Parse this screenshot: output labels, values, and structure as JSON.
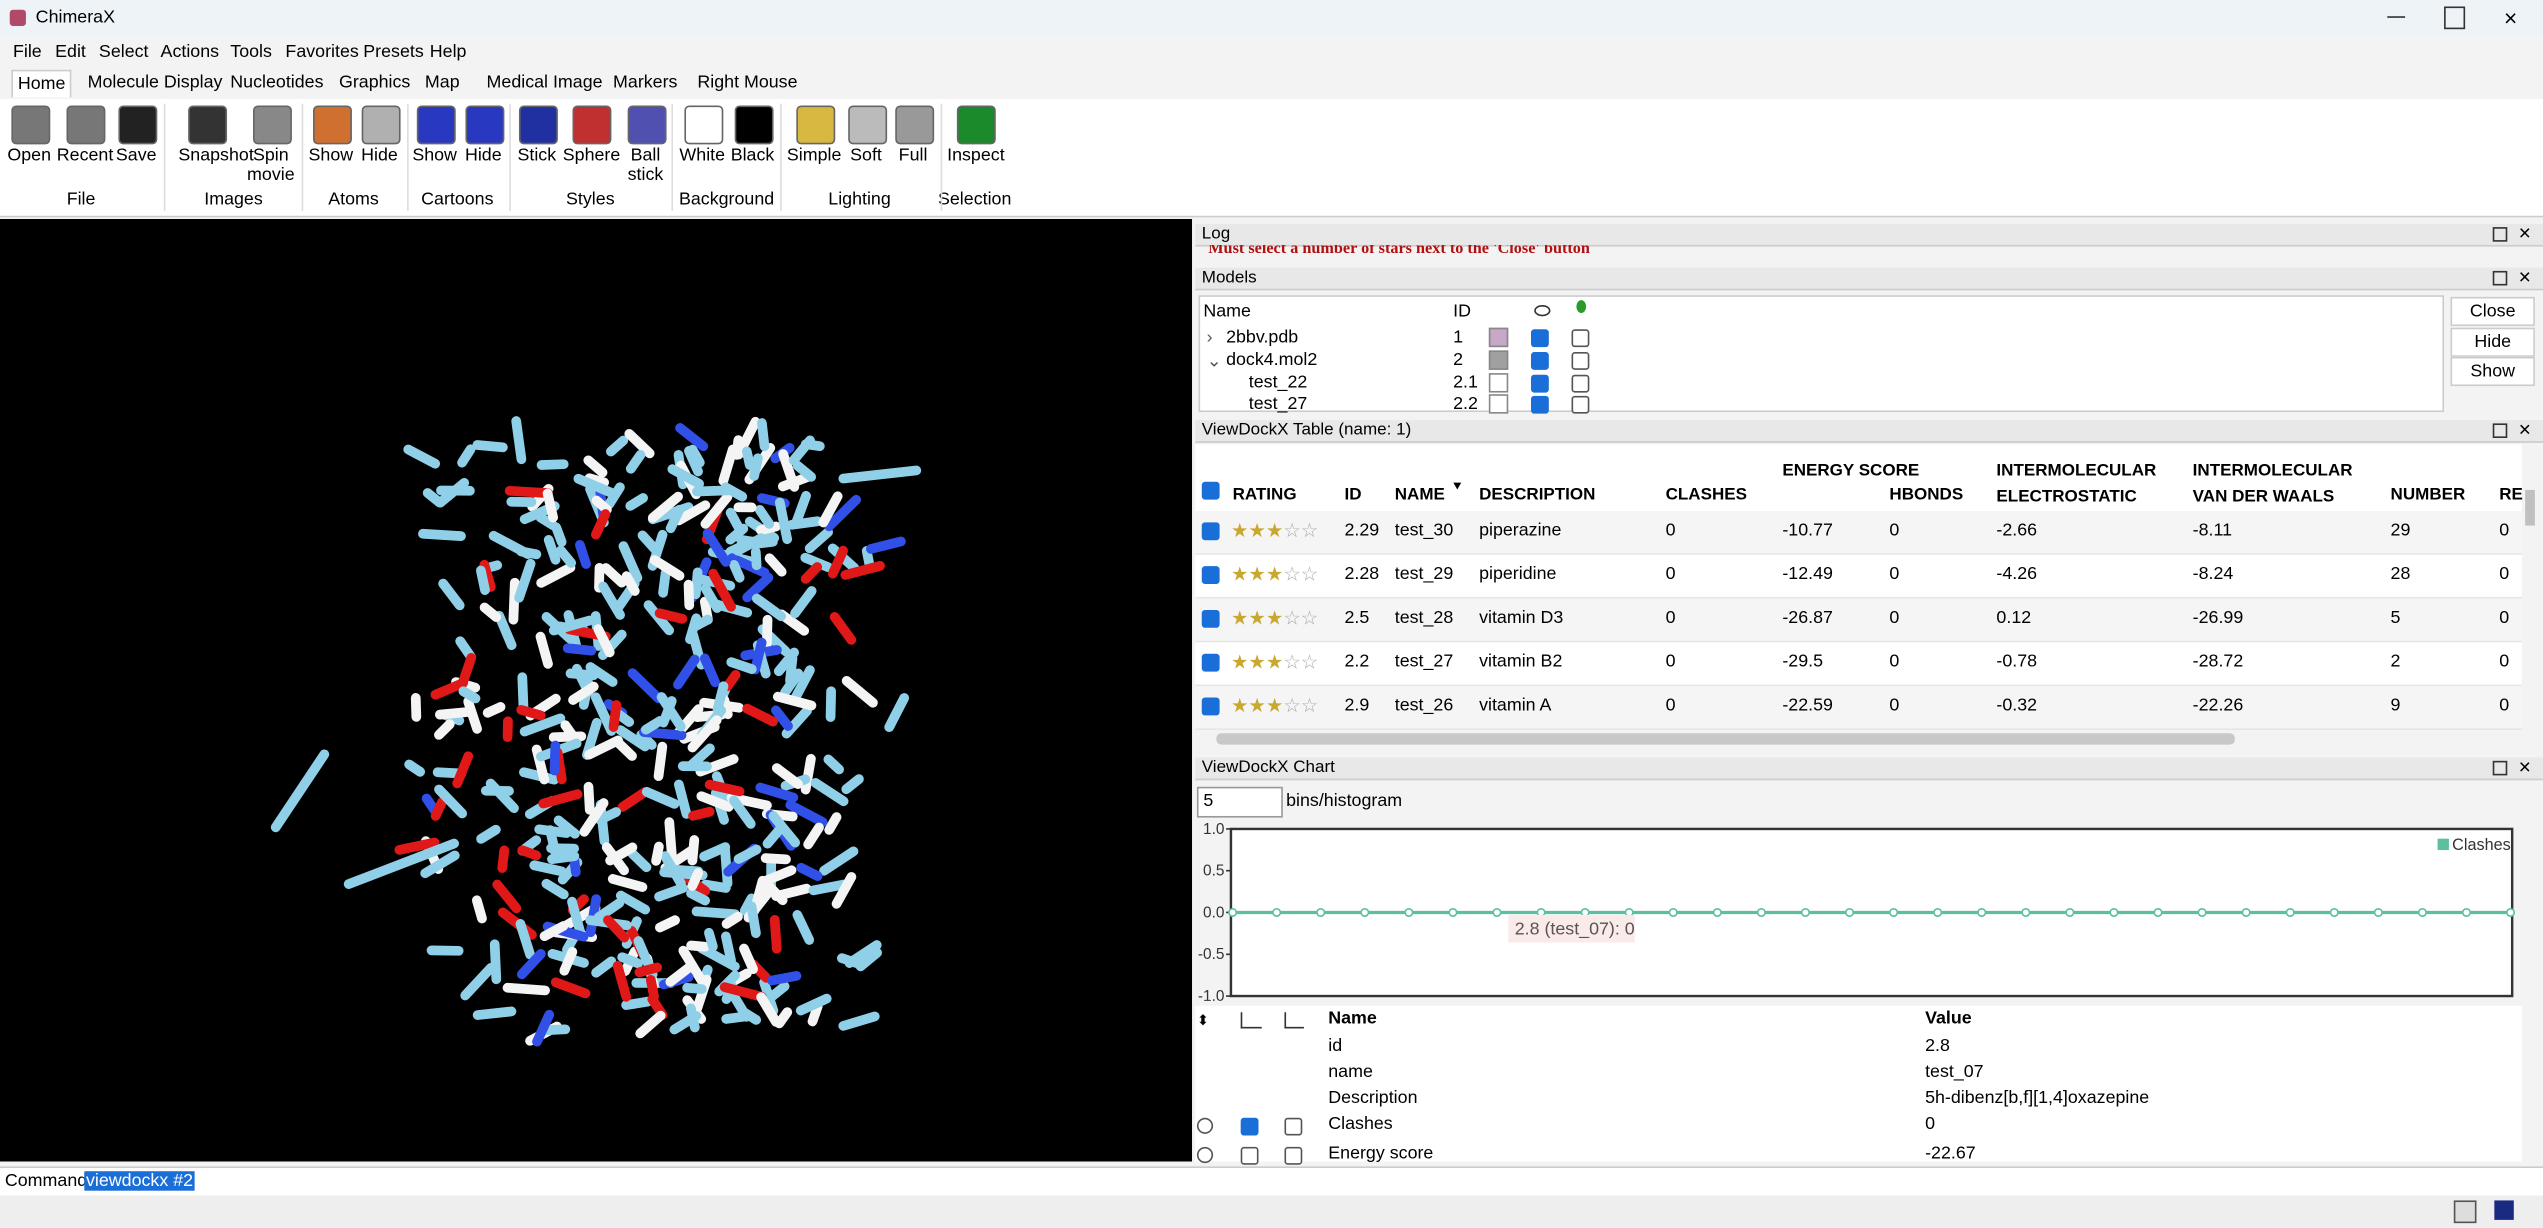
{
  "window": {
    "title": "ChimeraX"
  },
  "menu": [
    "File",
    "Edit",
    "Select",
    "Actions",
    "Tools",
    "Favorites",
    "Presets",
    "Help"
  ],
  "tabs": [
    "Home",
    "Molecule Display",
    "Nucleotides",
    "Graphics",
    "Map",
    "Medical Image",
    "Markers",
    "Right Mouse"
  ],
  "toolbar": [
    {
      "label": "File",
      "buttons": [
        "Open",
        "Recent",
        "Save"
      ]
    },
    {
      "label": "Images",
      "buttons": [
        "Snapshot",
        "Spin movie"
      ]
    },
    {
      "label": "Atoms",
      "buttons": [
        "Show",
        "Hide"
      ]
    },
    {
      "label": "Cartoons",
      "buttons": [
        "Show",
        "Hide"
      ]
    },
    {
      "label": "Styles",
      "buttons": [
        "Stick",
        "Sphere",
        "Ball stick"
      ]
    },
    {
      "label": "Background",
      "buttons": [
        "White",
        "Black"
      ]
    },
    {
      "label": "Lighting",
      "buttons": [
        "Simple",
        "Soft",
        "Full"
      ]
    },
    {
      "label": "Selection",
      "buttons": [
        "Inspect"
      ]
    }
  ],
  "log": {
    "title": "Log",
    "message": "Must select a number of stars next to the 'Close' button"
  },
  "models": {
    "title": "Models",
    "headers": [
      "Name",
      "ID"
    ],
    "rows": [
      [
        "2bbv.pdb",
        "1"
      ],
      [
        "dock4.mol2",
        "2"
      ],
      [
        "test_22",
        "2.1"
      ],
      [
        "test_27",
        "2.2"
      ]
    ],
    "buttons": [
      "Close",
      "Hide",
      "Show"
    ]
  },
  "table": {
    "title": "ViewDockX Table (name: 1)",
    "headers": [
      "RATING",
      "ID",
      "NAME",
      "DESCRIPTION",
      "CLASHES",
      "ENERGY SCORE",
      "HBONDS",
      "INTERMOLECULAR ELECTROSTATIC",
      "INTERMOLECULAR VAN DER WAALS",
      "NUMBER",
      "RE"
    ],
    "rows": [
      [
        3,
        "2.29",
        "test_30",
        "piperazine",
        0,
        -10.77,
        0,
        -2.66,
        -8.11,
        29,
        0
      ],
      [
        3,
        "2.28",
        "test_29",
        "piperidine",
        0,
        -12.49,
        0,
        -4.26,
        -8.24,
        28,
        0
      ],
      [
        3,
        "2.5",
        "test_28",
        "vitamin D3",
        0,
        -26.87,
        0,
        0.12,
        -26.99,
        5,
        0
      ],
      [
        3,
        "2.2",
        "test_27",
        "vitamin B2",
        0,
        -29.5,
        0,
        -0.78,
        -28.72,
        2,
        0
      ],
      [
        3,
        "2.9",
        "test_26",
        "vitamin A",
        0,
        -22.59,
        0,
        -0.32,
        -22.26,
        9,
        0
      ]
    ]
  },
  "chart": {
    "title": "ViewDockX Chart",
    "bins": 5,
    "bins_label": "bins/histogram",
    "ylim": [
      -1,
      1
    ],
    "yticks": [
      {
        "value": 1,
        "label": "1.0"
      },
      {
        "value": 0.5,
        "label": "0.5"
      },
      {
        "value": 0,
        "label": "0.0"
      },
      {
        "value": -0.5,
        "label": "-0.5"
      },
      {
        "value": -1,
        "label": "-1.0"
      }
    ],
    "series": {
      "name": "Clashes",
      "color": "#5cc0a0",
      "values": [
        0,
        0,
        0,
        0,
        0,
        0,
        0,
        0,
        0,
        0,
        0,
        0,
        0,
        0,
        0,
        0,
        0,
        0,
        0,
        0,
        0,
        0,
        0,
        0,
        0,
        0,
        0,
        0,
        0,
        0
      ]
    },
    "tooltip": "2.8 (test_07): 0"
  },
  "details": {
    "headers": [
      "Name",
      "Value"
    ],
    "rows": [
      [
        "id",
        "2.8"
      ],
      [
        "name",
        "test_07"
      ],
      [
        "Description",
        "5h-dibenz[b,f][1,4]oxazepine"
      ],
      [
        "Clashes",
        0
      ],
      [
        "Energy score",
        -22.67
      ]
    ]
  },
  "command": {
    "label": "Command:",
    "text": "viewdockx #2"
  }
}
